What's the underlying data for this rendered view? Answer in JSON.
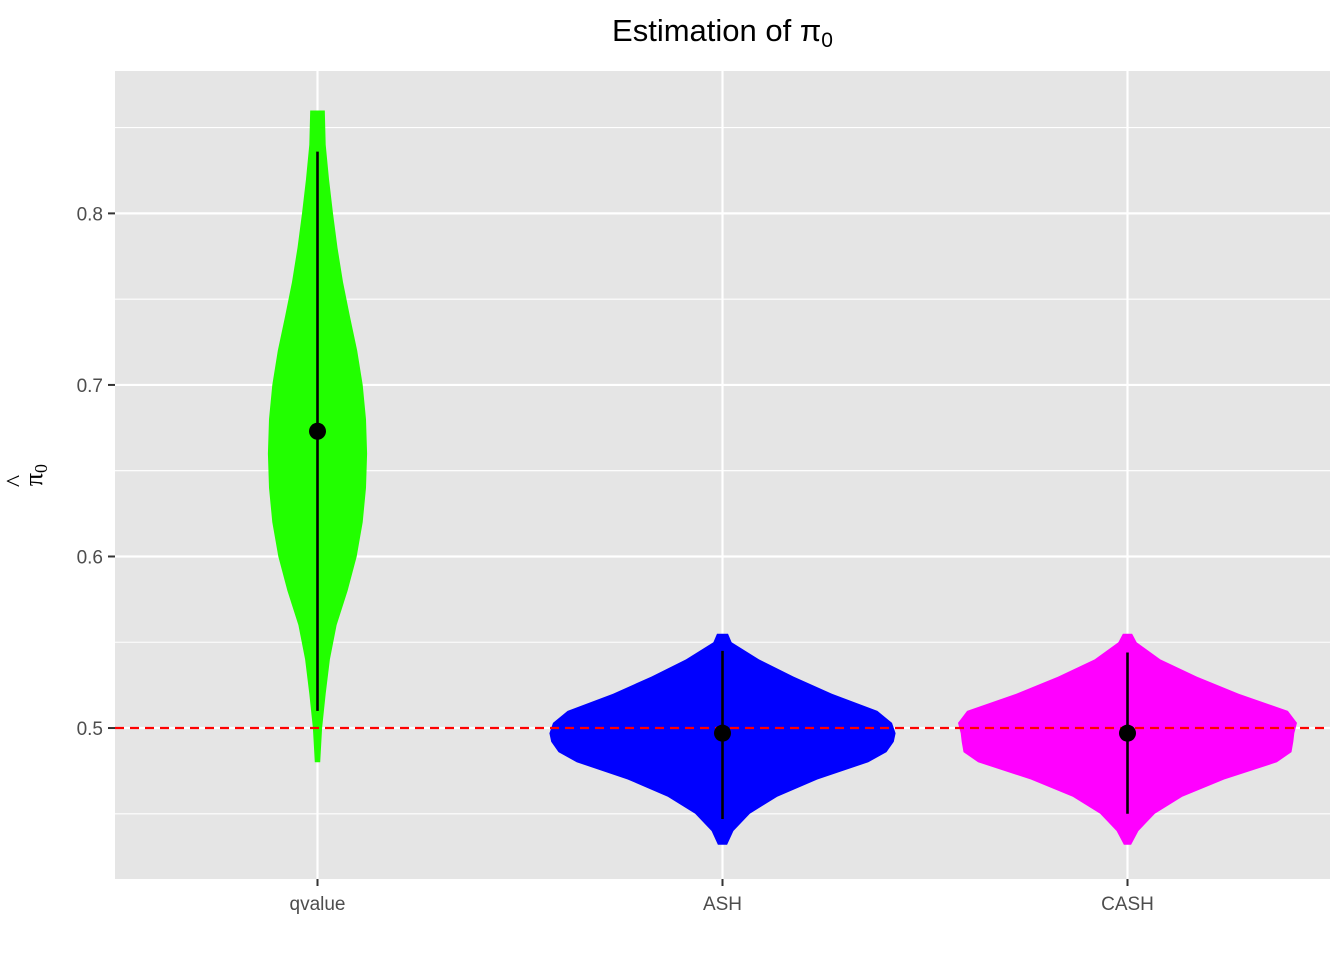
{
  "chart_data": {
    "type": "violin",
    "title": "Estimation of π",
    "title_subscript": "0",
    "ylabel": "π",
    "ylabel_hat": "^",
    "ylabel_subscript": "0",
    "xlabel": "",
    "ylim": [
      0.412,
      0.883
    ],
    "y_ticks": [
      0.5,
      0.6,
      0.7,
      0.8
    ],
    "y_tick_labels": [
      "0.5",
      "0.6",
      "0.7",
      "0.8"
    ],
    "categories": [
      "qvalue",
      "ASH",
      "CASH"
    ],
    "reference_line": {
      "y": 0.5,
      "color": "#ff0000",
      "style": "dashed"
    },
    "panel_background": "#e5e5e5",
    "grid": true,
    "series": [
      {
        "category": "qvalue",
        "color": "#22ff00",
        "mean": 0.673,
        "range": [
          0.51,
          0.836
        ],
        "profile": [
          [
            0.48,
            0.015
          ],
          [
            0.5,
            0.025
          ],
          [
            0.52,
            0.045
          ],
          [
            0.54,
            0.068
          ],
          [
            0.56,
            0.105
          ],
          [
            0.58,
            0.165
          ],
          [
            0.6,
            0.215
          ],
          [
            0.62,
            0.248
          ],
          [
            0.64,
            0.266
          ],
          [
            0.66,
            0.272
          ],
          [
            0.68,
            0.266
          ],
          [
            0.7,
            0.248
          ],
          [
            0.72,
            0.218
          ],
          [
            0.74,
            0.178
          ],
          [
            0.76,
            0.14
          ],
          [
            0.78,
            0.11
          ],
          [
            0.8,
            0.085
          ],
          [
            0.82,
            0.063
          ],
          [
            0.84,
            0.045
          ],
          [
            0.86,
            0.04
          ]
        ]
      },
      {
        "category": "ASH",
        "color": "#0000ff",
        "mean": 0.497,
        "range": [
          0.447,
          0.545
        ],
        "profile": [
          [
            0.432,
            0.025
          ],
          [
            0.44,
            0.06
          ],
          [
            0.45,
            0.15
          ],
          [
            0.46,
            0.3
          ],
          [
            0.47,
            0.52
          ],
          [
            0.48,
            0.8
          ],
          [
            0.486,
            0.9
          ],
          [
            0.492,
            0.94
          ],
          [
            0.497,
            0.95
          ],
          [
            0.503,
            0.93
          ],
          [
            0.51,
            0.85
          ],
          [
            0.52,
            0.6
          ],
          [
            0.53,
            0.39
          ],
          [
            0.54,
            0.2
          ],
          [
            0.55,
            0.05
          ],
          [
            0.555,
            0.03
          ]
        ]
      },
      {
        "category": "CASH",
        "color": "#ff00ff",
        "mean": 0.497,
        "range": [
          0.45,
          0.544
        ],
        "profile": [
          [
            0.432,
            0.02
          ],
          [
            0.44,
            0.06
          ],
          [
            0.45,
            0.15
          ],
          [
            0.46,
            0.3
          ],
          [
            0.47,
            0.53
          ],
          [
            0.48,
            0.82
          ],
          [
            0.486,
            0.9
          ],
          [
            0.492,
            0.91
          ],
          [
            0.497,
            0.915
          ],
          [
            0.503,
            0.93
          ],
          [
            0.51,
            0.88
          ],
          [
            0.52,
            0.61
          ],
          [
            0.53,
            0.38
          ],
          [
            0.54,
            0.18
          ],
          [
            0.55,
            0.05
          ],
          [
            0.555,
            0.025
          ]
        ]
      }
    ]
  }
}
